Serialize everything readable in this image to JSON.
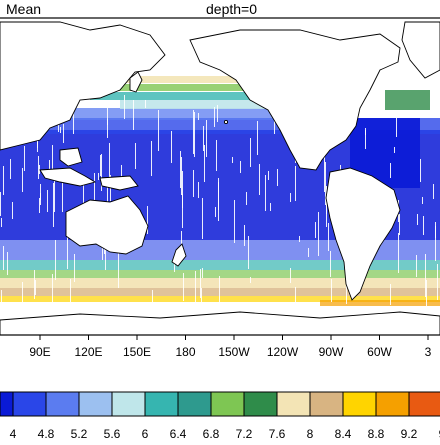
{
  "title_left": "Mean",
  "title_right": "depth=0",
  "lon_labels": [
    "90E",
    "120E",
    "150E",
    "180",
    "150W",
    "120W",
    "90W",
    "60W",
    "3"
  ],
  "colorbar": {
    "edge_labels": [
      "4",
      "4.8",
      "5.2",
      "5.6",
      "6",
      "6.4",
      "6.8",
      "7.2",
      "7.6",
      "8",
      "8.4",
      "8.8",
      "9.2",
      "9"
    ],
    "colors": [
      "#0a1ad6",
      "#2a46e8",
      "#5b7cf0",
      "#9cc0f0",
      "#bfe6ea",
      "#36b5b0",
      "#2e9a8e",
      "#7ec653",
      "#2f8c4a",
      "#f3e4b5",
      "#d8b482",
      "#ffd400",
      "#f5a000",
      "#e85a12",
      "#b32411"
    ]
  },
  "colors": {
    "land_outline": "#000000",
    "ocean_background": "#ffffff"
  }
}
